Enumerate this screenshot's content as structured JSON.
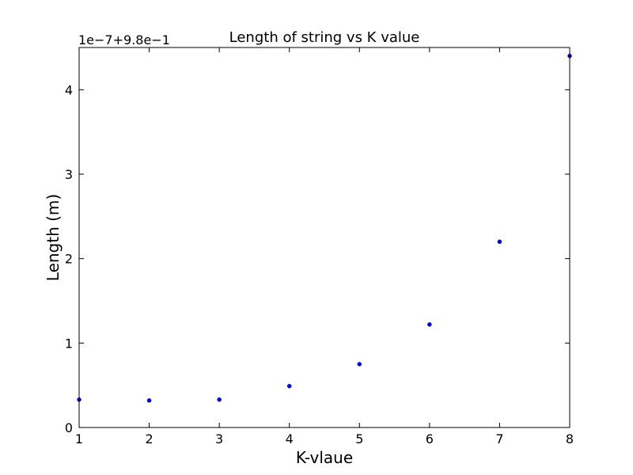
{
  "chart_data": {
    "type": "scatter",
    "title": "Length of string vs K value",
    "xlabel": "K-vlaue",
    "ylabel": "Length (m)",
    "y_offset_label": "1e−7+9.8e−1",
    "xlim": [
      1,
      8
    ],
    "ylim": [
      0,
      4.5
    ],
    "x_ticks": [
      1,
      2,
      3,
      4,
      5,
      6,
      7,
      8
    ],
    "y_ticks": [
      0,
      1,
      2,
      3,
      4
    ],
    "grid": false,
    "marker_color": "#0000ff",
    "series": [
      {
        "x": [
          1,
          2,
          3,
          4,
          5,
          6,
          7,
          8
        ],
        "y": [
          0.33,
          0.32,
          0.33,
          0.49,
          0.75,
          1.22,
          2.2,
          4.4
        ]
      }
    ]
  }
}
